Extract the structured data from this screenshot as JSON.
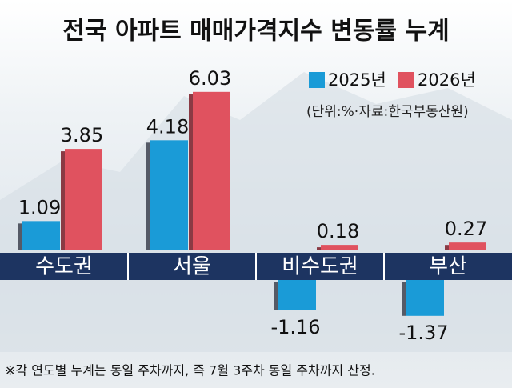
{
  "chart_data": {
    "type": "bar",
    "title": "전국 아파트 매매가격지수 변동률 누계",
    "subtitle": "(단위:%·자료:한국부동산원)",
    "note": "※각 연도별 누계는 동일 주차까지, 즉 7월 3주차 동일 주차까지 산정.",
    "categories": [
      "수도권",
      "서울",
      "비수도권",
      "부산"
    ],
    "series": [
      {
        "name": "2025년",
        "color": "#1a9bd7",
        "values": [
          1.09,
          4.18,
          -1.16,
          -1.37
        ]
      },
      {
        "name": "2026년",
        "color": "#e0525f",
        "values": [
          3.85,
          6.03,
          0.18,
          0.27
        ]
      }
    ]
  }
}
